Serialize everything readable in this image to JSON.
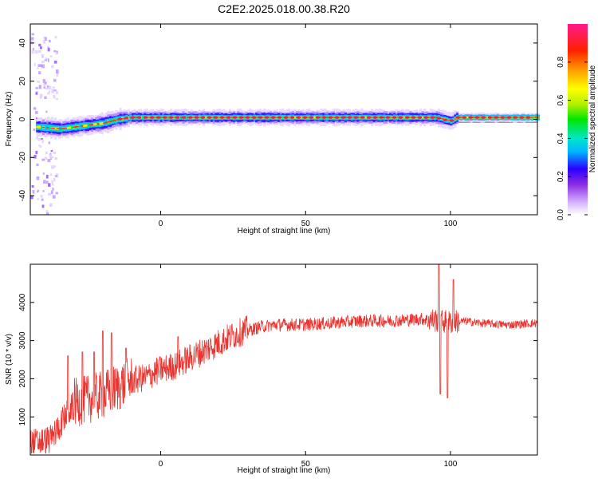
{
  "title": "C2E2.2025.018.00.38.R20",
  "chart_data": [
    {
      "type": "heatmap",
      "xlabel": "Height of straight line (km)",
      "ylabel": "Frequency (Hz)",
      "xlim": [
        -45,
        130
      ],
      "ylim": [
        -50,
        50
      ],
      "xticks": [
        0,
        50,
        100
      ],
      "yticks": [
        -40,
        -20,
        0,
        20,
        40
      ],
      "colorbar": {
        "label": "Normalized spectral amplitude",
        "range": [
          0.0,
          1.0
        ],
        "ticks": [
          "0.0",
          "0.2",
          "0.4",
          "0.6",
          "0.8"
        ]
      },
      "trace": [
        {
          "x": -42,
          "f": -4
        },
        {
          "x": -35,
          "f": -5
        },
        {
          "x": -30,
          "f": -4
        },
        {
          "x": -25,
          "f": -3
        },
        {
          "x": -20,
          "f": -2
        },
        {
          "x": -15,
          "f": 0
        },
        {
          "x": -10,
          "f": 1
        },
        {
          "x": 0,
          "f": 1
        },
        {
          "x": 20,
          "f": 1
        },
        {
          "x": 50,
          "f": 1
        },
        {
          "x": 80,
          "f": 1
        },
        {
          "x": 95,
          "f": 1
        },
        {
          "x": 100,
          "f": -1
        },
        {
          "x": 102,
          "f": 1
        },
        {
          "x": 130,
          "f": 1
        }
      ]
    },
    {
      "type": "line",
      "xlabel": "Height of straight line (km)",
      "ylabel": "SNR (10 * v/v)",
      "xlim": [
        -45,
        130
      ],
      "ylim": [
        0,
        5000
      ],
      "xticks": [
        0,
        50,
        100
      ],
      "yticks": [
        1000,
        2000,
        3000,
        4000
      ],
      "color": "#e8332e",
      "envelope": [
        {
          "x": -45,
          "y": 300
        },
        {
          "x": -38,
          "y": 400
        },
        {
          "x": -33,
          "y": 1000
        },
        {
          "x": -30,
          "y": 1300
        },
        {
          "x": -25,
          "y": 1400
        },
        {
          "x": -20,
          "y": 1500
        },
        {
          "x": -15,
          "y": 1700
        },
        {
          "x": -10,
          "y": 1900
        },
        {
          "x": -5,
          "y": 2000
        },
        {
          "x": 0,
          "y": 2200
        },
        {
          "x": 5,
          "y": 2300
        },
        {
          "x": 10,
          "y": 2500
        },
        {
          "x": 15,
          "y": 2700
        },
        {
          "x": 20,
          "y": 2900
        },
        {
          "x": 25,
          "y": 3100
        },
        {
          "x": 30,
          "y": 3250
        },
        {
          "x": 35,
          "y": 3350
        },
        {
          "x": 40,
          "y": 3400
        },
        {
          "x": 50,
          "y": 3400
        },
        {
          "x": 60,
          "y": 3450
        },
        {
          "x": 70,
          "y": 3500
        },
        {
          "x": 80,
          "y": 3500
        },
        {
          "x": 90,
          "y": 3550
        },
        {
          "x": 95,
          "y": 3500
        },
        {
          "x": 100,
          "y": 3450
        },
        {
          "x": 105,
          "y": 3500
        },
        {
          "x": 110,
          "y": 3450
        },
        {
          "x": 120,
          "y": 3400
        },
        {
          "x": 130,
          "y": 3450
        }
      ],
      "spikes": [
        {
          "x": -32,
          "y": 2600
        },
        {
          "x": -27,
          "y": 2700
        },
        {
          "x": -23,
          "y": 2700
        },
        {
          "x": -20,
          "y": 3250
        },
        {
          "x": -17,
          "y": 3200
        },
        {
          "x": -12,
          "y": 2800
        },
        {
          "x": 6,
          "y": 3100
        },
        {
          "x": 96,
          "y": 5000
        },
        {
          "x": 96.5,
          "y": 1600
        },
        {
          "x": 99,
          "y": 1500
        },
        {
          "x": 101,
          "y": 4600
        }
      ]
    }
  ]
}
